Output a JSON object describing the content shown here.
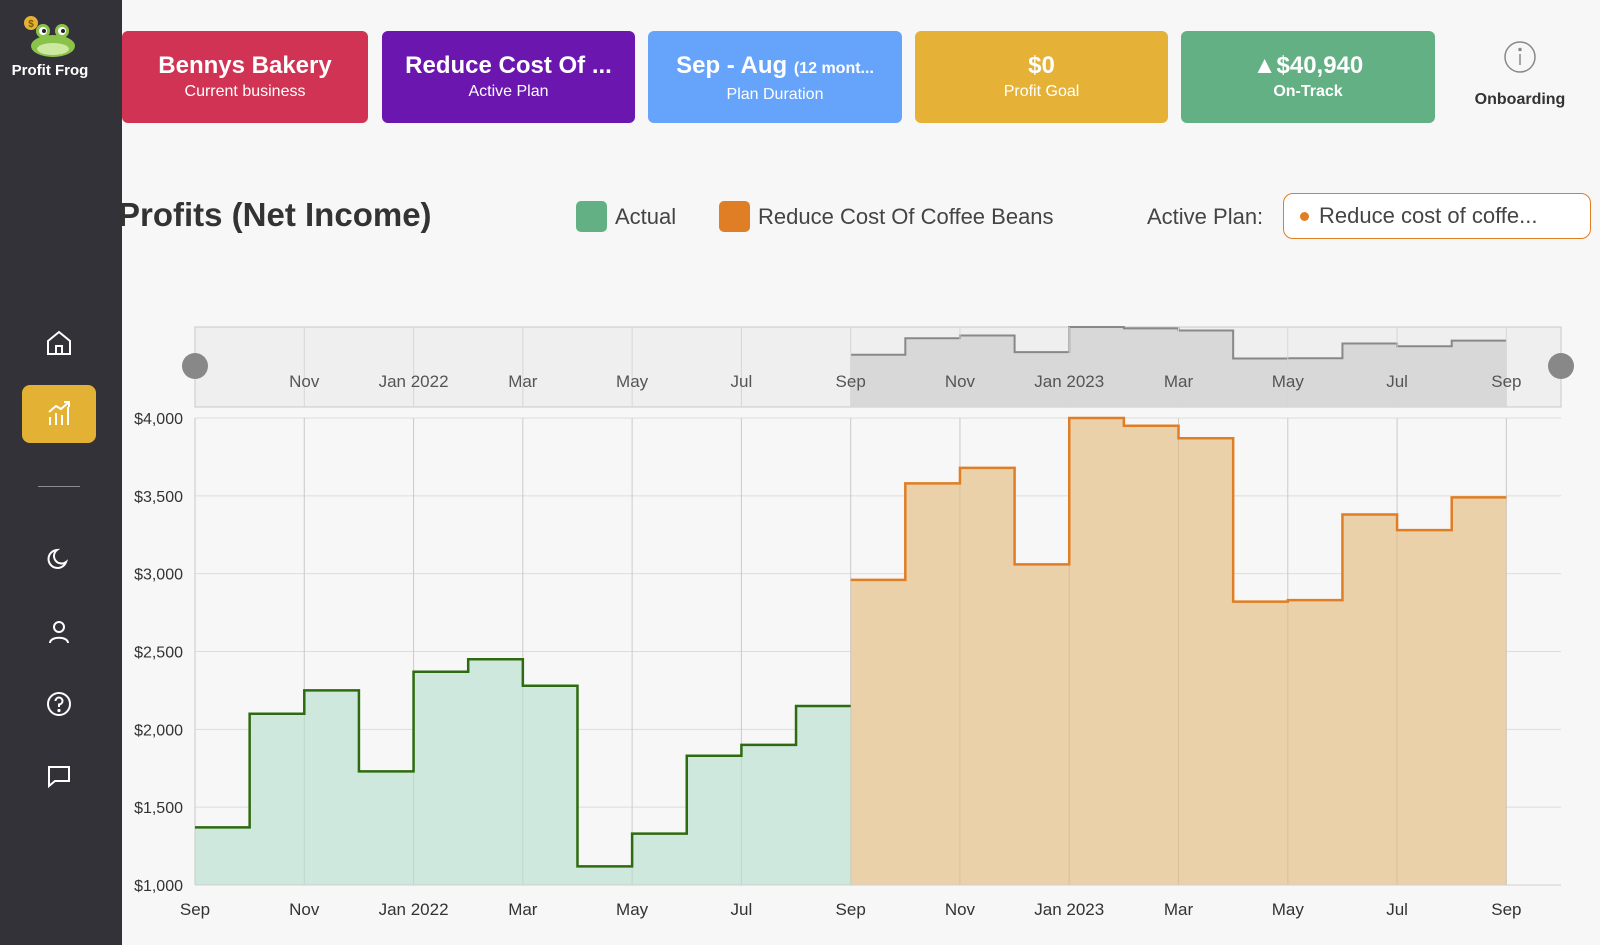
{
  "app": {
    "name": "Profit Frog"
  },
  "sidebar": {
    "items": [
      {
        "icon": "home-icon"
      },
      {
        "icon": "chart-icon",
        "active": true
      },
      {
        "icon": "moon-icon"
      },
      {
        "icon": "user-icon"
      },
      {
        "icon": "help-icon"
      },
      {
        "icon": "message-icon"
      }
    ]
  },
  "cards": {
    "business": {
      "title": "Bennys Bakery",
      "sub": "Current business",
      "color": "#d03353"
    },
    "plan": {
      "title": "Reduce Cost Of ...",
      "sub": "Active Plan",
      "color": "#6c16b0"
    },
    "duration": {
      "title": "Sep - Aug",
      "title_small": "(12 mont...",
      "sub": "Plan Duration",
      "color": "#66a3fb"
    },
    "goal": {
      "title": "$0",
      "sub": "Profit Goal",
      "color": "#e5b237"
    },
    "status": {
      "title": "$40,940",
      "sub": "On-Track",
      "color": "#62b084"
    }
  },
  "onboarding": {
    "label": "Onboarding"
  },
  "legend": {
    "actual": {
      "label": "Actual",
      "color": "#62b084"
    },
    "plan": {
      "label": "Reduce Cost Of Coffee Beans",
      "color": "#df7e24"
    }
  },
  "active_plan": {
    "label": "Active Plan:",
    "value": "Reduce cost of coffe..."
  },
  "chart_data": {
    "type": "area",
    "step": true,
    "title": "Profits (Net Income)",
    "ylim": [
      1000,
      4000
    ],
    "yticks": [
      "$4,000",
      "$3,500",
      "$3,000",
      "$2,500",
      "$2,000",
      "$1,500",
      "$1,000"
    ],
    "ytick_values": [
      4000,
      3500,
      3000,
      2500,
      2000,
      1500,
      1000
    ],
    "x_tick_labels": [
      "Sep",
      "Nov",
      "Jan 2022",
      "Mar",
      "May",
      "Jul",
      "Sep",
      "Nov",
      "Jan 2023",
      "Mar",
      "May",
      "Jul",
      "Sep"
    ],
    "x_tick_months": [
      0,
      2,
      4,
      6,
      8,
      10,
      12,
      14,
      16,
      18,
      20,
      22,
      24
    ],
    "navigator_tick_labels": [
      "Nov",
      "Jan 2022",
      "Mar",
      "May",
      "Jul",
      "Sep",
      "Nov",
      "Jan 2023",
      "Mar",
      "May",
      "Jul",
      "Sep"
    ],
    "navigator_tick_months": [
      2,
      4,
      6,
      8,
      10,
      12,
      14,
      16,
      18,
      20,
      22,
      24
    ],
    "series": [
      {
        "name": "Actual",
        "start_month": 0,
        "values": [
          1370,
          2100,
          2250,
          1730,
          2370,
          2450,
          2280,
          1120,
          1330,
          1830,
          1900,
          2150
        ]
      },
      {
        "name": "Reduce Cost Of Coffee Beans",
        "start_month": 12,
        "values": [
          2960,
          3580,
          3680,
          3060,
          4000,
          3950,
          3870,
          2820,
          2830,
          3380,
          3280,
          3490
        ]
      }
    ]
  }
}
